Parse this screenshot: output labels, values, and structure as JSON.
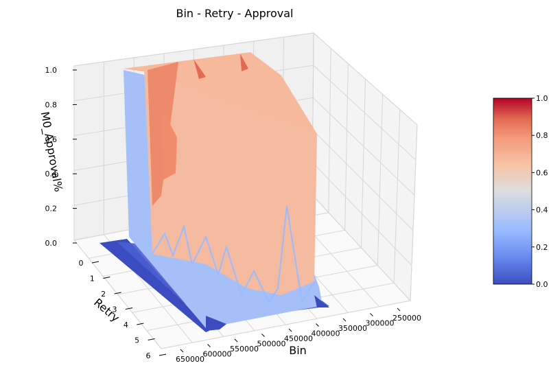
{
  "chart_data": {
    "type": "surface",
    "title": "Bin - Retry - Approval",
    "xlabel": "Bin",
    "ylabel": "Retry",
    "zlabel": "M0_Approval%",
    "x_ticks": [
      "650000",
      "600000",
      "550000",
      "500000",
      "450000",
      "400000",
      "350000",
      "300000",
      "250000"
    ],
    "y_ticks": [
      "0",
      "1",
      "2",
      "3",
      "4",
      "5",
      "6"
    ],
    "z_ticks": [
      "0.0",
      "0.2",
      "0.4",
      "0.6",
      "0.8",
      "1.0"
    ],
    "xlim": [
      220000,
      660000
    ],
    "ylim": [
      0,
      6
    ],
    "zlim": [
      0,
      1
    ],
    "colorbar": {
      "cmap": "coolwarm",
      "ticks": [
        "0.0",
        "0.2",
        "0.4",
        "0.6",
        "0.8",
        "1.0"
      ],
      "colors": [
        "#3b4cc0",
        "#6788ee",
        "#9abbff",
        "#c9d7f0",
        "#edd1c2",
        "#f7a889",
        "#e26952",
        "#b40426"
      ]
    },
    "surface": {
      "bin_range": [
        260000,
        650000
      ],
      "retry_range": [
        0,
        6
      ],
      "rows": [
        {
          "retry": 0,
          "approval": 0.0
        },
        {
          "retry": 1,
          "approval": 0.0
        },
        {
          "retry": 2,
          "approval": 0.34
        },
        {
          "retry": 3,
          "approval": 0.66
        },
        {
          "retry": 4,
          "approval": 0.66
        },
        {
          "retry": 5,
          "approval": 0.66
        },
        {
          "retry": 6,
          "approval": 0.34
        }
      ],
      "peak_approval": 1.0
    },
    "grid": true,
    "legend": "none"
  }
}
